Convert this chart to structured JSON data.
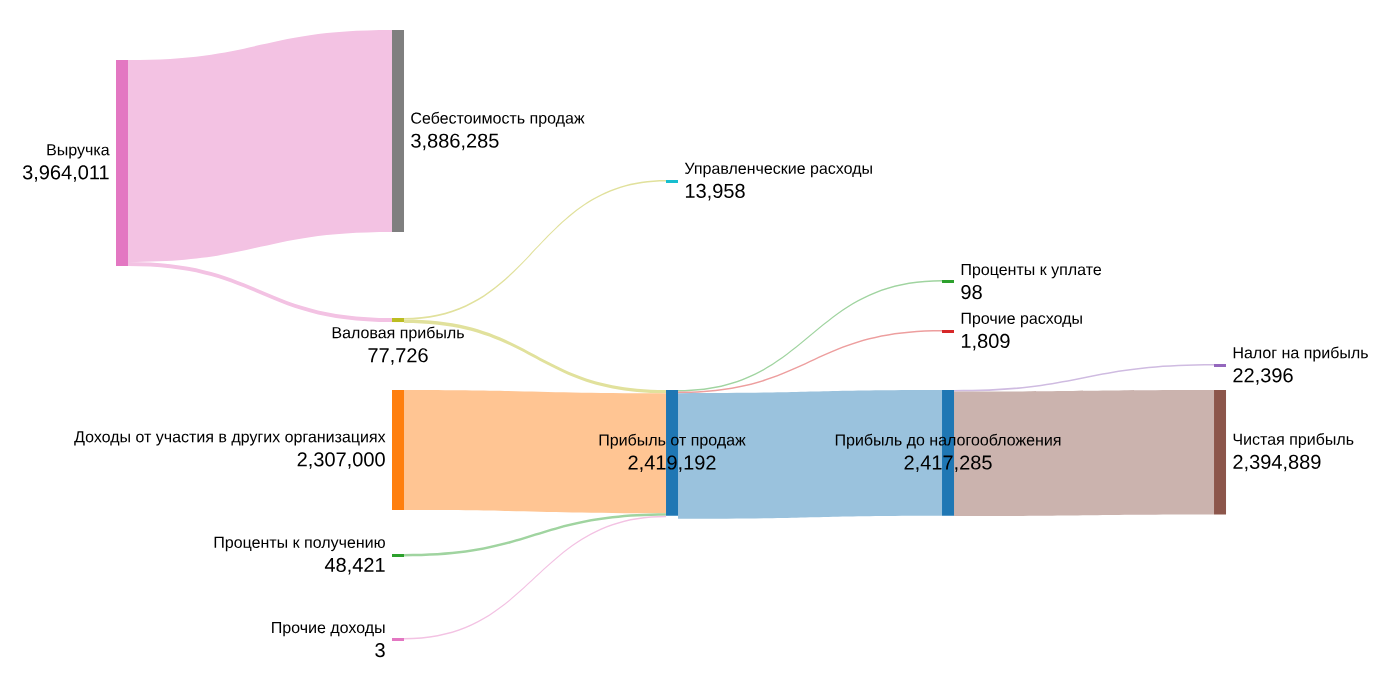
{
  "chart_data": {
    "type": "other",
    "categories": [
      "Выручка",
      "Себестоимость продаж",
      "Валовая прибыль",
      "Управленческие расходы",
      "Доходы от участия в других организациях",
      "Проценты к получению",
      "Прочие доходы",
      "Прибыль от продаж",
      "Проценты к уплате",
      "Прочие расходы",
      "Прибыль до налогообложения",
      "Налог на прибыль",
      "Чистая прибыль"
    ],
    "values": [
      3964011,
      3886285,
      77726,
      13958,
      2307000,
      48421,
      3,
      2419192,
      98,
      1809,
      2417285,
      22396,
      2394889
    ],
    "value_labels": [
      "3,964,011",
      "3,886,285",
      "77,726",
      "13,958",
      "2,307,000",
      "48,421",
      "3",
      "2,419,192",
      "98",
      "1,809",
      "2,417,285",
      "22,396",
      "2,394,889"
    ],
    "colors": [
      "#e377c2",
      "#7f7f7f",
      "#bcbd22",
      "#17becf",
      "#ff7f0e",
      "#2ca02c",
      "#e377c2",
      "#1f77b4",
      "#2ca02c",
      "#d62728",
      "#1f77b4",
      "#9467bd",
      "#8c564b"
    ]
  }
}
